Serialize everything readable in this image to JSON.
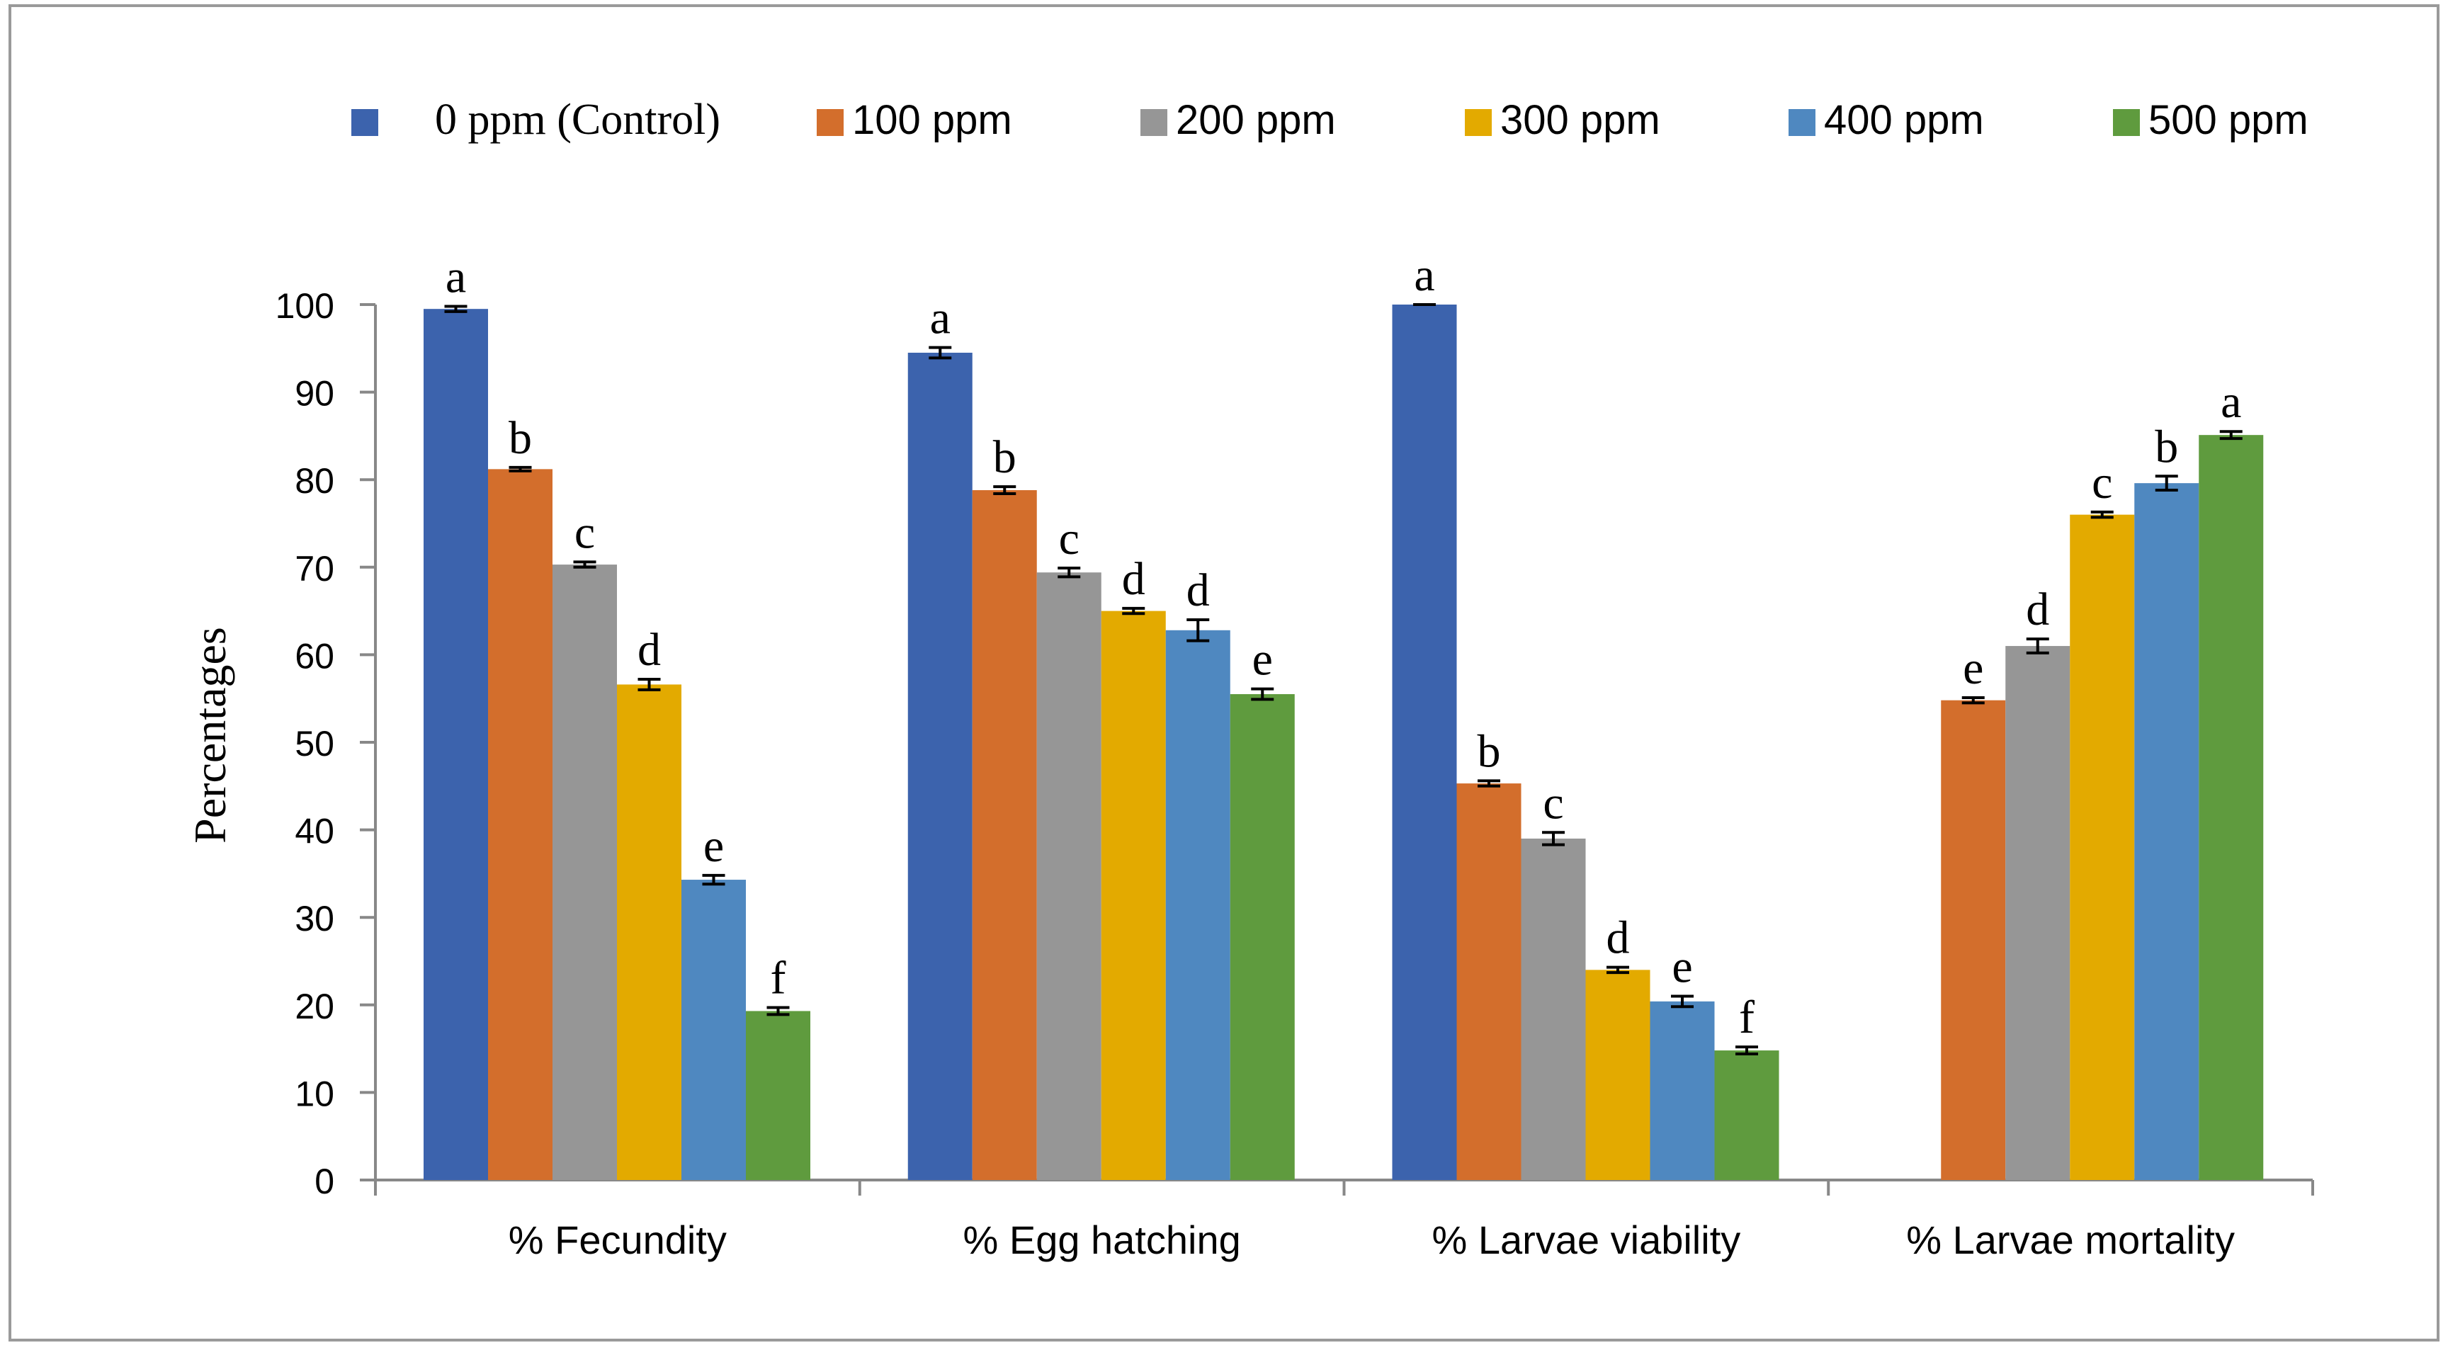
{
  "chart_data": {
    "type": "bar",
    "ylabel": "Percentages",
    "xlabel": "",
    "ylim": [
      0,
      100
    ],
    "yticks": [
      0,
      10,
      20,
      30,
      40,
      50,
      60,
      70,
      80,
      90,
      100
    ],
    "grid": false,
    "legend_position": "top",
    "categories": [
      "% Fecundity",
      "% Egg hatching",
      "% Larvae viability",
      "% Larvae mortality"
    ],
    "series": [
      {
        "name": "0 ppm (Control)",
        "color": "#3C63AD",
        "values": [
          99.5,
          94.5,
          100.0,
          null
        ],
        "errors": [
          0.3,
          0.6,
          0.0,
          null
        ],
        "letters": [
          "a",
          "a",
          "a",
          ""
        ]
      },
      {
        "name": "100 ppm",
        "color": "#D36E2C",
        "values": [
          81.2,
          78.8,
          45.3,
          54.8
        ],
        "errors": [
          0.2,
          0.4,
          0.3,
          0.3
        ],
        "letters": [
          "b",
          "b",
          "b",
          "e"
        ]
      },
      {
        "name": "200 ppm",
        "color": "#969696",
        "values": [
          70.3,
          69.4,
          39.0,
          61.0
        ],
        "errors": [
          0.3,
          0.5,
          0.7,
          0.8
        ],
        "letters": [
          "c",
          "c",
          "c",
          "d"
        ]
      },
      {
        "name": "300 ppm",
        "color": "#E3AA00",
        "values": [
          56.6,
          65.0,
          24.0,
          76.0
        ],
        "errors": [
          0.6,
          0.3,
          0.3,
          0.3
        ],
        "letters": [
          "d",
          "d",
          "d",
          "c"
        ]
      },
      {
        "name": "400 ppm",
        "color": "#4F88C0",
        "values": [
          34.3,
          62.8,
          20.4,
          79.6
        ],
        "errors": [
          0.5,
          1.2,
          0.6,
          0.8
        ],
        "letters": [
          "e",
          "d",
          "e",
          "b"
        ]
      },
      {
        "name": "500 ppm",
        "color": "#5F9B3E",
        "values": [
          19.3,
          55.5,
          14.8,
          85.1
        ],
        "errors": [
          0.4,
          0.6,
          0.4,
          0.4
        ],
        "letters": [
          "f",
          "e",
          "f",
          "a"
        ]
      }
    ]
  }
}
